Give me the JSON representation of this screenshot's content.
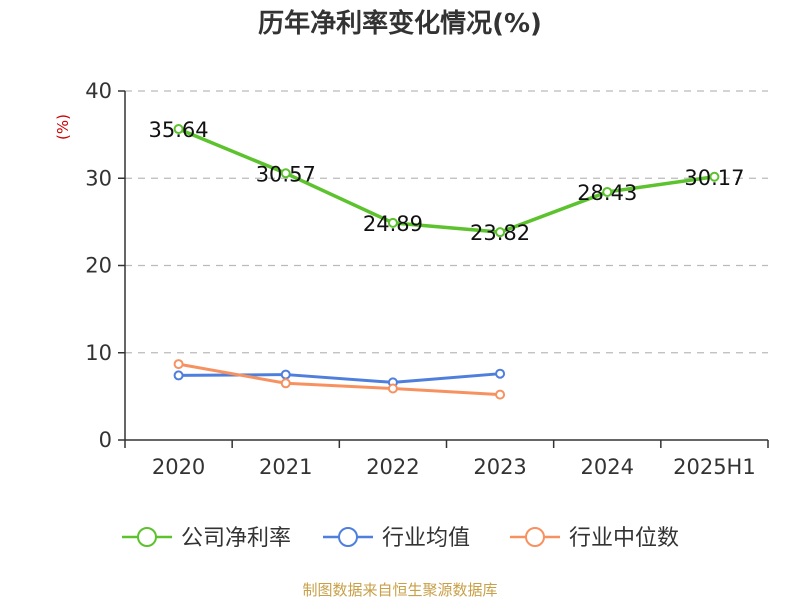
{
  "chart_data": {
    "type": "line",
    "title": "历年净利率变化情况(%)",
    "ylabel": "(%)",
    "categories": [
      "2020",
      "2021",
      "2022",
      "2023",
      "2024",
      "2025H1"
    ],
    "ylim": [
      0,
      40
    ],
    "yticks": [
      "0",
      "10",
      "20",
      "30",
      "40"
    ],
    "grid": true,
    "legend_position": "bottom",
    "series": [
      {
        "name": "公司净利率",
        "color": "#5cc22d",
        "values": [
          35.64,
          30.57,
          24.89,
          23.82,
          28.43,
          30.17
        ],
        "labels": [
          "35.64",
          "30.57",
          "24.89",
          "23.82",
          "28.43",
          "30.17"
        ]
      },
      {
        "name": "行业均值",
        "color": "#4f7fdc",
        "values": [
          7.4,
          7.5,
          6.6,
          7.6,
          null,
          null
        ]
      },
      {
        "name": "行业中位数",
        "color": "#f79260",
        "values": [
          8.7,
          6.5,
          5.9,
          5.2,
          null,
          null
        ]
      }
    ]
  },
  "source": "制图数据来自恒生聚源数据库"
}
